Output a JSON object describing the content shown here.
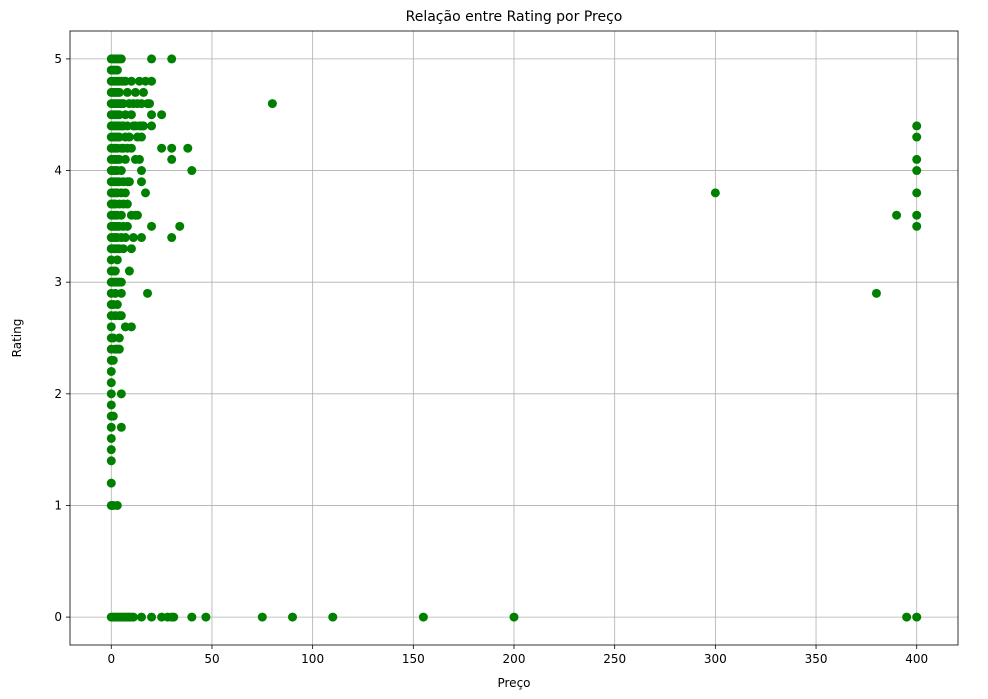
{
  "chart_data": {
    "type": "scatter",
    "title": "Relação entre Rating por Preço",
    "xlabel": "Preço",
    "ylabel": "Rating",
    "xlim": [
      -20.5,
      420.5
    ],
    "ylim": [
      -0.25,
      5.25
    ],
    "xticks": [
      0,
      50,
      100,
      150,
      200,
      250,
      300,
      350,
      400
    ],
    "yticks": [
      0,
      1,
      2,
      3,
      4,
      5
    ],
    "grid": true,
    "color": "#008000",
    "series": [
      {
        "points": [
          [
            0,
            5
          ],
          [
            0,
            4.9
          ],
          [
            0,
            4.8
          ],
          [
            0,
            4.7
          ],
          [
            0,
            4.6
          ],
          [
            0,
            4.5
          ],
          [
            0,
            4.4
          ],
          [
            0,
            4.3
          ],
          [
            0,
            4.2
          ],
          [
            0,
            4.1
          ],
          [
            0,
            4
          ],
          [
            0,
            3.9
          ],
          [
            0,
            3.8
          ],
          [
            0,
            3.7
          ],
          [
            0,
            3.6
          ],
          [
            0,
            3.5
          ],
          [
            0,
            3.4
          ],
          [
            0,
            3.3
          ],
          [
            0,
            3.2
          ],
          [
            0,
            3.1
          ],
          [
            0,
            3
          ],
          [
            0,
            2.9
          ],
          [
            0,
            2.8
          ],
          [
            0,
            2.7
          ],
          [
            0,
            2.6
          ],
          [
            0,
            2.5
          ],
          [
            0,
            2.4
          ],
          [
            0,
            2.3
          ],
          [
            0,
            2.2
          ],
          [
            0,
            2.1
          ],
          [
            0,
            2
          ],
          [
            0,
            1.9
          ],
          [
            0,
            1.8
          ],
          [
            0,
            1.7
          ],
          [
            0,
            1.6
          ],
          [
            0,
            1.5
          ],
          [
            0,
            1.4
          ],
          [
            0,
            1.2
          ],
          [
            0,
            1
          ],
          [
            0,
            0
          ],
          [
            1,
            5
          ],
          [
            1,
            4.9
          ],
          [
            1,
            4.8
          ],
          [
            1,
            4.7
          ],
          [
            1,
            4.6
          ],
          [
            1,
            4.5
          ],
          [
            1,
            4.4
          ],
          [
            1,
            4.3
          ],
          [
            1,
            4.2
          ],
          [
            1,
            4.1
          ],
          [
            1,
            4
          ],
          [
            1,
            3.9
          ],
          [
            1,
            3.8
          ],
          [
            1,
            3.7
          ],
          [
            1,
            3.6
          ],
          [
            1,
            3.5
          ],
          [
            1,
            3.4
          ],
          [
            1,
            3.3
          ],
          [
            1,
            3.1
          ],
          [
            1,
            3
          ],
          [
            1,
            2.8
          ],
          [
            1,
            2.5
          ],
          [
            1,
            2.3
          ],
          [
            1,
            1.8
          ],
          [
            1,
            1
          ],
          [
            1,
            0
          ],
          [
            2,
            5
          ],
          [
            2,
            4.9
          ],
          [
            2,
            4.8
          ],
          [
            2,
            4.7
          ],
          [
            2,
            4.6
          ],
          [
            2,
            4.5
          ],
          [
            2,
            4.4
          ],
          [
            2,
            4.3
          ],
          [
            2,
            4.2
          ],
          [
            2,
            4.1
          ],
          [
            2,
            4
          ],
          [
            2,
            3.9
          ],
          [
            2,
            3.8
          ],
          [
            2,
            3.7
          ],
          [
            2,
            3.6
          ],
          [
            2,
            3.5
          ],
          [
            2,
            3.4
          ],
          [
            2,
            3.3
          ],
          [
            2,
            3.1
          ],
          [
            2,
            3
          ],
          [
            2,
            2.9
          ],
          [
            2,
            2.7
          ],
          [
            2,
            2.4
          ],
          [
            2,
            0
          ],
          [
            3,
            5
          ],
          [
            3,
            4.9
          ],
          [
            3,
            4.8
          ],
          [
            3,
            4.7
          ],
          [
            3,
            4.6
          ],
          [
            3,
            4.5
          ],
          [
            3,
            4.4
          ],
          [
            3,
            4.3
          ],
          [
            3,
            4.2
          ],
          [
            3,
            4.1
          ],
          [
            3,
            4
          ],
          [
            3,
            3.9
          ],
          [
            3,
            3.8
          ],
          [
            3,
            3.6
          ],
          [
            3,
            3.5
          ],
          [
            3,
            3.4
          ],
          [
            3,
            3.3
          ],
          [
            3,
            3.2
          ],
          [
            3,
            3
          ],
          [
            3,
            2.8
          ],
          [
            3,
            2.4
          ],
          [
            3,
            1
          ],
          [
            3,
            0
          ],
          [
            4,
            5
          ],
          [
            4,
            4.8
          ],
          [
            4,
            4.7
          ],
          [
            4,
            4.6
          ],
          [
            4,
            4.5
          ],
          [
            4,
            4.4
          ],
          [
            4,
            4.3
          ],
          [
            4,
            4.1
          ],
          [
            4,
            3.9
          ],
          [
            4,
            3.7
          ],
          [
            4,
            3.5
          ],
          [
            4,
            3.3
          ],
          [
            4,
            3
          ],
          [
            4,
            2.7
          ],
          [
            4,
            2.5
          ],
          [
            4,
            2.4
          ],
          [
            4,
            0
          ],
          [
            5,
            5
          ],
          [
            5,
            4.8
          ],
          [
            5,
            4.6
          ],
          [
            5,
            4.4
          ],
          [
            5,
            4.2
          ],
          [
            5,
            4
          ],
          [
            5,
            3.8
          ],
          [
            5,
            3.6
          ],
          [
            5,
            3.4
          ],
          [
            5,
            3
          ],
          [
            5,
            2.9
          ],
          [
            5,
            2.7
          ],
          [
            5,
            2
          ],
          [
            5,
            1.7
          ],
          [
            5,
            0
          ],
          [
            6,
            4.8
          ],
          [
            6,
            4.6
          ],
          [
            6,
            4.4
          ],
          [
            6,
            4.2
          ],
          [
            6,
            3.9
          ],
          [
            6,
            3.7
          ],
          [
            6,
            3.5
          ],
          [
            6,
            3.3
          ],
          [
            6,
            0
          ],
          [
            7,
            4.8
          ],
          [
            7,
            4.5
          ],
          [
            7,
            4.3
          ],
          [
            7,
            4.1
          ],
          [
            7,
            3.8
          ],
          [
            7,
            3.4
          ],
          [
            7,
            2.6
          ],
          [
            7,
            0
          ],
          [
            8,
            4.7
          ],
          [
            8,
            4.4
          ],
          [
            8,
            4.2
          ],
          [
            8,
            3.9
          ],
          [
            8,
            3.7
          ],
          [
            8,
            3.5
          ],
          [
            8,
            0
          ],
          [
            9,
            4.6
          ],
          [
            9,
            4.3
          ],
          [
            9,
            3.9
          ],
          [
            9,
            3.1
          ],
          [
            9,
            0
          ],
          [
            10,
            4.8
          ],
          [
            10,
            4.5
          ],
          [
            10,
            4.2
          ],
          [
            10,
            3.6
          ],
          [
            10,
            3.3
          ],
          [
            10,
            2.6
          ],
          [
            10,
            0
          ],
          [
            11,
            4.6
          ],
          [
            11,
            4.4
          ],
          [
            11,
            3.4
          ],
          [
            11,
            0
          ],
          [
            12,
            4.7
          ],
          [
            12,
            4.4
          ],
          [
            12,
            4.1
          ],
          [
            12,
            3.6
          ],
          [
            13,
            4.6
          ],
          [
            13,
            4.3
          ],
          [
            13,
            3.6
          ],
          [
            14,
            4.8
          ],
          [
            14,
            4.4
          ],
          [
            14,
            4.1
          ],
          [
            15,
            4.6
          ],
          [
            15,
            4.4
          ],
          [
            15,
            4.3
          ],
          [
            15,
            4
          ],
          [
            15,
            3.9
          ],
          [
            15,
            3.4
          ],
          [
            15,
            0
          ],
          [
            16,
            4.7
          ],
          [
            16,
            4.4
          ],
          [
            17,
            4.8
          ],
          [
            17,
            3.8
          ],
          [
            18,
            4.6
          ],
          [
            18,
            2.9
          ],
          [
            19,
            4.6
          ],
          [
            20,
            5
          ],
          [
            20,
            4.8
          ],
          [
            20,
            4.5
          ],
          [
            20,
            4.4
          ],
          [
            20,
            3.5
          ],
          [
            20,
            0
          ],
          [
            25,
            4.5
          ],
          [
            25,
            4.2
          ],
          [
            25,
            0
          ],
          [
            28,
            0
          ],
          [
            30,
            5
          ],
          [
            30,
            4.2
          ],
          [
            30,
            4.1
          ],
          [
            30,
            3.4
          ],
          [
            30,
            0
          ],
          [
            31,
            0
          ],
          [
            34,
            3.5
          ],
          [
            38,
            4.2
          ],
          [
            40,
            4
          ],
          [
            40,
            0
          ],
          [
            47,
            0
          ],
          [
            75,
            0
          ],
          [
            80,
            4.6
          ],
          [
            90,
            0
          ],
          [
            110,
            0
          ],
          [
            155,
            0
          ],
          [
            200,
            0
          ],
          [
            300,
            3.8
          ],
          [
            380,
            2.9
          ],
          [
            390,
            3.6
          ],
          [
            395,
            0
          ],
          [
            400,
            4.4
          ],
          [
            400,
            4.3
          ],
          [
            400,
            4.1
          ],
          [
            400,
            4
          ],
          [
            400,
            3.8
          ],
          [
            400,
            3.6
          ],
          [
            400,
            3.5
          ],
          [
            400,
            0
          ]
        ]
      }
    ]
  }
}
